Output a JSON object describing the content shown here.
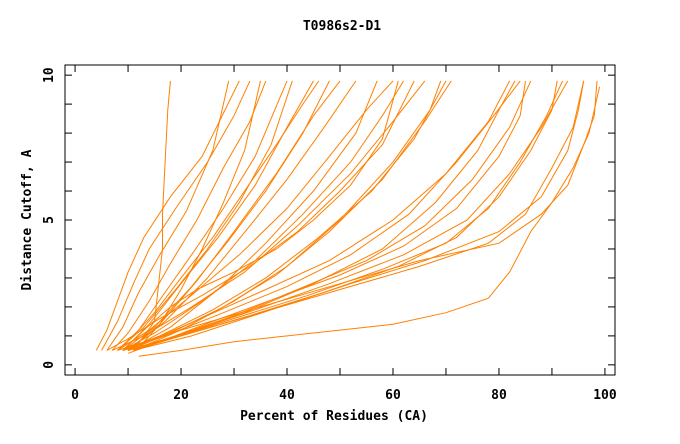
{
  "chart_data": {
    "type": "line",
    "title": "T0986s2-D1",
    "xlabel": "Percent of Residues (CA)",
    "ylabel": "Distance Cutoff, A",
    "xlim": [
      -1.9,
      101.9
    ],
    "ylim": [
      -0.35,
      10.35
    ],
    "xticks": [
      0,
      20,
      40,
      60,
      80,
      100
    ],
    "yticks": [
      0,
      5,
      10
    ],
    "grid": false,
    "color": "#ff8000",
    "series": [
      {
        "points": [
          [
            11,
            0.5
          ],
          [
            15,
            1.5
          ],
          [
            16.5,
            4
          ],
          [
            16.5,
            5.2
          ],
          [
            17,
            7
          ],
          [
            17.5,
            8.8
          ],
          [
            18,
            9.8
          ]
        ]
      },
      {
        "points": [
          [
            4,
            0.5
          ],
          [
            6,
            1.2
          ],
          [
            8,
            2.2
          ],
          [
            10,
            3.2
          ],
          [
            13,
            4.4
          ],
          [
            18,
            5.8
          ],
          [
            24,
            7.2
          ],
          [
            31,
            9.8
          ]
        ]
      },
      {
        "points": [
          [
            5,
            0.5
          ],
          [
            8,
            1.5
          ],
          [
            11,
            2.8
          ],
          [
            14,
            4
          ],
          [
            19,
            5.4
          ],
          [
            25,
            7
          ],
          [
            30,
            8.6
          ],
          [
            33,
            9.8
          ]
        ]
      },
      {
        "points": [
          [
            6,
            0.5
          ],
          [
            9,
            1.3
          ],
          [
            12,
            2.5
          ],
          [
            16,
            3.8
          ],
          [
            21,
            5.3
          ],
          [
            26,
            7.4
          ],
          [
            29,
            9.8
          ]
        ]
      },
      {
        "points": [
          [
            7,
            0.5
          ],
          [
            10,
            1.1
          ],
          [
            14,
            2.2
          ],
          [
            18,
            3.5
          ],
          [
            23,
            5
          ],
          [
            28,
            6.8
          ],
          [
            33,
            8.4
          ],
          [
            36,
            9.8
          ]
        ]
      },
      {
        "points": [
          [
            8,
            0.5
          ],
          [
            12,
            1.2
          ],
          [
            17,
            2.5
          ],
          [
            22,
            3.8
          ],
          [
            28,
            5.4
          ],
          [
            34,
            7.2
          ],
          [
            40,
            9.8
          ]
        ]
      },
      {
        "points": [
          [
            8,
            0.5
          ],
          [
            13,
            1.3
          ],
          [
            19,
            2.6
          ],
          [
            25,
            4
          ],
          [
            31,
            5.6
          ],
          [
            37,
            7.6
          ],
          [
            41,
            9.8
          ]
        ]
      },
      {
        "points": [
          [
            9,
            0.5
          ],
          [
            14,
            1.4
          ],
          [
            20,
            2.8
          ],
          [
            27,
            4.4
          ],
          [
            34,
            6.2
          ],
          [
            40,
            8.2
          ],
          [
            45,
            9.8
          ]
        ]
      },
      {
        "points": [
          [
            9,
            0.5
          ],
          [
            15,
            1.3
          ],
          [
            22,
            2.7
          ],
          [
            29,
            4.3
          ],
          [
            36,
            6
          ],
          [
            43,
            8
          ],
          [
            48,
            9.8
          ]
        ]
      },
      {
        "points": [
          [
            10,
            0.5
          ],
          [
            16,
            1.4
          ],
          [
            23,
            2.9
          ],
          [
            30,
            4.6
          ],
          [
            38,
            6.6
          ],
          [
            45,
            8.6
          ],
          [
            50,
            9.8
          ]
        ]
      },
      {
        "points": [
          [
            10,
            0.5
          ],
          [
            17,
            1.5
          ],
          [
            25,
            3
          ],
          [
            33,
            4.8
          ],
          [
            40,
            6.4
          ],
          [
            47,
            8.2
          ],
          [
            53,
            9.8
          ]
        ]
      },
      {
        "points": [
          [
            8,
            0.5
          ],
          [
            14,
            1.2
          ],
          [
            22,
            2.4
          ],
          [
            31,
            3.8
          ],
          [
            40,
            5.4
          ],
          [
            48,
            7.2
          ],
          [
            55,
            8.8
          ],
          [
            60,
            9.8
          ]
        ]
      },
      {
        "points": [
          [
            9,
            0.5
          ],
          [
            15,
            1.1
          ],
          [
            24,
            2.2
          ],
          [
            34,
            3.6
          ],
          [
            43,
            5.2
          ],
          [
            52,
            7
          ],
          [
            58,
            8.6
          ],
          [
            62,
            9.8
          ]
        ]
      },
      {
        "points": [
          [
            10,
            0.5
          ],
          [
            18,
            1.3
          ],
          [
            27,
            2.6
          ],
          [
            36,
            4.2
          ],
          [
            45,
            6
          ],
          [
            53,
            8
          ],
          [
            57,
            9.8
          ]
        ]
      },
      {
        "points": [
          [
            7,
            0.5
          ],
          [
            13,
            1
          ],
          [
            22,
            2
          ],
          [
            32,
            3.2
          ],
          [
            42,
            4.8
          ],
          [
            52,
            6.6
          ],
          [
            60,
            8.4
          ],
          [
            66,
            9.8
          ]
        ]
      },
      {
        "points": [
          [
            9,
            0.5
          ],
          [
            16,
            1
          ],
          [
            26,
            1.9
          ],
          [
            36,
            3
          ],
          [
            46,
            4.4
          ],
          [
            56,
            6
          ],
          [
            64,
            7.8
          ],
          [
            70,
            9.8
          ]
        ]
      },
      {
        "points": [
          [
            10,
            0.5
          ],
          [
            18,
            1.1
          ],
          [
            28,
            2
          ],
          [
            38,
            3.1
          ],
          [
            48,
            4.6
          ],
          [
            58,
            6.4
          ],
          [
            66,
            8.4
          ],
          [
            71,
            9.8
          ]
        ]
      },
      {
        "points": [
          [
            11,
            0.5
          ],
          [
            20,
            1.2
          ],
          [
            30,
            2.2
          ],
          [
            40,
            3.4
          ],
          [
            50,
            5
          ],
          [
            60,
            7
          ],
          [
            67,
            8.8
          ],
          [
            69,
            9.8
          ]
        ]
      },
      {
        "points": [
          [
            8,
            0.5
          ],
          [
            15,
            0.9
          ],
          [
            25,
            1.7
          ],
          [
            36,
            2.6
          ],
          [
            48,
            3.6
          ],
          [
            60,
            5
          ],
          [
            70,
            6.6
          ],
          [
            78,
            8.4
          ],
          [
            82,
            9.8
          ]
        ]
      },
      {
        "points": [
          [
            9,
            0.5
          ],
          [
            17,
            1
          ],
          [
            28,
            1.8
          ],
          [
            40,
            2.7
          ],
          [
            52,
            3.8
          ],
          [
            63,
            5.2
          ],
          [
            72,
            7
          ],
          [
            79,
            8.6
          ],
          [
            84,
            9.8
          ]
        ]
      },
      {
        "points": [
          [
            10,
            0.5
          ],
          [
            19,
            1
          ],
          [
            30,
            1.7
          ],
          [
            42,
            2.6
          ],
          [
            55,
            3.6
          ],
          [
            66,
            4.8
          ],
          [
            75,
            6.4
          ],
          [
            82,
            8.2
          ],
          [
            86,
            9.8
          ]
        ]
      },
      {
        "points": [
          [
            11,
            0.5
          ],
          [
            20,
            1
          ],
          [
            32,
            1.8
          ],
          [
            45,
            2.8
          ],
          [
            58,
            4
          ],
          [
            68,
            5.6
          ],
          [
            76,
            7.4
          ],
          [
            80,
            8.8
          ],
          [
            83,
            9.8
          ]
        ]
      },
      {
        "points": [
          [
            9,
            0.5
          ],
          [
            18,
            0.9
          ],
          [
            30,
            1.6
          ],
          [
            44,
            2.4
          ],
          [
            58,
            3.3
          ],
          [
            70,
            4.2
          ],
          [
            78,
            5.4
          ],
          [
            84,
            7
          ],
          [
            89,
            8.6
          ],
          [
            92,
            9.8
          ]
        ]
      },
      {
        "points": [
          [
            10,
            0.5
          ],
          [
            20,
            1
          ],
          [
            33,
            1.7
          ],
          [
            47,
            2.5
          ],
          [
            61,
            3.4
          ],
          [
            72,
            4.4
          ],
          [
            80,
            5.8
          ],
          [
            86,
            7.4
          ],
          [
            90,
            8.8
          ],
          [
            91,
            9.8
          ]
        ]
      },
      {
        "points": [
          [
            11,
            0.5
          ],
          [
            21,
            1.1
          ],
          [
            34,
            1.9
          ],
          [
            48,
            2.8
          ],
          [
            62,
            3.8
          ],
          [
            74,
            5
          ],
          [
            82,
            6.6
          ],
          [
            88,
            8.2
          ],
          [
            93,
            9.8
          ]
        ]
      },
      {
        "points": [
          [
            10,
            0.5
          ],
          [
            20,
            1
          ],
          [
            35,
            1.8
          ],
          [
            50,
            2.6
          ],
          [
            65,
            3.4
          ],
          [
            78,
            4.2
          ],
          [
            85,
            5.2
          ],
          [
            90,
            6.8
          ],
          [
            94,
            8.2
          ],
          [
            96,
            9.8
          ]
        ]
      },
      {
        "points": [
          [
            11,
            0.5
          ],
          [
            22,
            1
          ],
          [
            37,
            1.9
          ],
          [
            52,
            2.8
          ],
          [
            66,
            3.6
          ],
          [
            80,
            4.6
          ],
          [
            88,
            5.8
          ],
          [
            93,
            7.4
          ],
          [
            95,
            8.8
          ],
          [
            96,
            9.8
          ]
        ]
      },
      {
        "points": [
          [
            12,
            0.3
          ],
          [
            20,
            0.5
          ],
          [
            30,
            0.8
          ],
          [
            45,
            1.1
          ],
          [
            60,
            1.4
          ],
          [
            70,
            1.8
          ],
          [
            78,
            2.3
          ],
          [
            82,
            3.2
          ],
          [
            86,
            4.6
          ],
          [
            90,
            5.6
          ],
          [
            94,
            6.8
          ],
          [
            97,
            8
          ],
          [
            99,
            9.6
          ]
        ]
      },
      {
        "points": [
          [
            10,
            0.6
          ],
          [
            20,
            1.2
          ],
          [
            35,
            2
          ],
          [
            50,
            2.8
          ],
          [
            65,
            3.6
          ],
          [
            80,
            4.2
          ],
          [
            88,
            5.2
          ],
          [
            93,
            6.2
          ],
          [
            96,
            7.6
          ],
          [
            98,
            8.6
          ],
          [
            98.5,
            9.8
          ]
        ]
      },
      {
        "points": [
          [
            9,
            0.5
          ],
          [
            13,
            1.2
          ],
          [
            18,
            2
          ],
          [
            23,
            2.6
          ],
          [
            30,
            3.2
          ],
          [
            38,
            4
          ],
          [
            45,
            5
          ],
          [
            52,
            6.2
          ],
          [
            58,
            7.8
          ],
          [
            61,
            9.8
          ]
        ]
      },
      {
        "points": [
          [
            12,
            0.6
          ],
          [
            16,
            1.4
          ],
          [
            20,
            2.6
          ],
          [
            24,
            4
          ],
          [
            28,
            5.6
          ],
          [
            32,
            7.4
          ],
          [
            35,
            9.8
          ]
        ]
      },
      {
        "points": [
          [
            8,
            0.5
          ],
          [
            11,
            1
          ],
          [
            15,
            1.8
          ],
          [
            20,
            3
          ],
          [
            26,
            4.4
          ],
          [
            32,
            6
          ],
          [
            38,
            7.6
          ],
          [
            43,
            9
          ],
          [
            46,
            9.8
          ]
        ]
      },
      {
        "points": [
          [
            6,
            0.5
          ],
          [
            10,
            0.9
          ],
          [
            16,
            1.6
          ],
          [
            24,
            2.4
          ],
          [
            33,
            3.4
          ],
          [
            42,
            4.6
          ],
          [
            50,
            6
          ],
          [
            58,
            7.6
          ],
          [
            64,
            9.8
          ]
        ]
      },
      {
        "points": [
          [
            10,
            0.4
          ],
          [
            16,
            0.8
          ],
          [
            26,
            1.5
          ],
          [
            38,
            2.3
          ],
          [
            50,
            3.1
          ],
          [
            62,
            4.1
          ],
          [
            72,
            5.4
          ],
          [
            80,
            7.2
          ],
          [
            84,
            8.6
          ],
          [
            85,
            9.8
          ]
        ]
      }
    ]
  }
}
